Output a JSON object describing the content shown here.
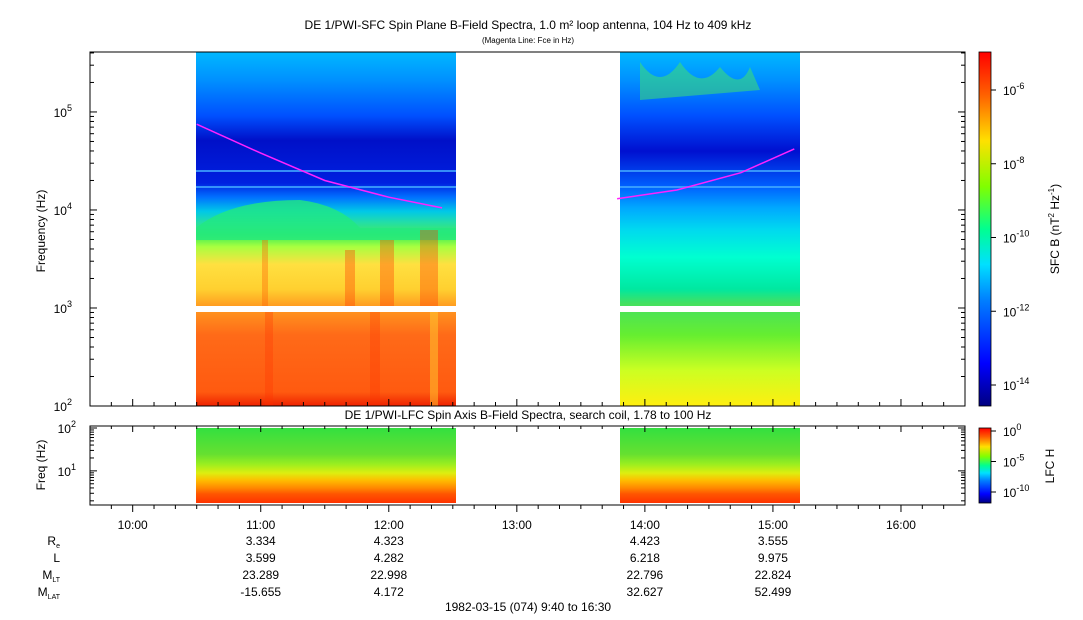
{
  "chart_data": [
    {
      "type": "heatmap",
      "title": "DE 1/PWI-SFC  Spin Plane B-Field Spectra, 1.0 m² loop antenna, 104 Hz to 409 kHz",
      "subtitle": "(Magenta Line: Fce in Hz)",
      "ylabel": "Frequency (Hz)",
      "yscale": "log",
      "ylim": [
        100,
        409000
      ],
      "yticks": [
        {
          "base": "10",
          "exp": "2"
        },
        {
          "base": "10",
          "exp": "3"
        },
        {
          "base": "10",
          "exp": "4"
        },
        {
          "base": "10",
          "exp": "5"
        }
      ],
      "colorbar": {
        "label_main": "SFC B (nT",
        "label_exp1": "2",
        "label_mid": " Hz",
        "label_exp2": "-1",
        "label_end": ")",
        "scale": "log",
        "ticks": [
          {
            "base": "10",
            "exp": "-6"
          },
          {
            "base": "10",
            "exp": "-8"
          },
          {
            "base": "10",
            "exp": "-10"
          },
          {
            "base": "10",
            "exp": "-12"
          },
          {
            "base": "10",
            "exp": "-14"
          }
        ]
      },
      "data_segments": [
        {
          "start": "10:30",
          "end": "12:30"
        },
        {
          "start": "13:47",
          "end": "15:11"
        }
      ],
      "fce_line": {
        "color": "#ff22ff",
        "segment1": [
          [
            "10:30",
            75000
          ],
          [
            "11:00",
            38000
          ],
          [
            "11:30",
            20000
          ],
          [
            "12:00",
            13500
          ],
          [
            "12:25",
            10500
          ]
        ],
        "segment2": [
          [
            "13:47",
            13000
          ],
          [
            "14:15",
            16000
          ],
          [
            "14:45",
            24000
          ],
          [
            "15:10",
            42000
          ]
        ]
      }
    },
    {
      "type": "heatmap",
      "title": "DE 1/PWI-LFC  Spin Axis B-Field Spectra, search coil, 1.78 to 100 Hz",
      "ylabel": "Freq (Hz)",
      "yscale": "log",
      "ylim": [
        1.78,
        100
      ],
      "yticks": [
        {
          "base": "10",
          "exp": "1"
        },
        {
          "base": "10",
          "exp": "2"
        }
      ],
      "colorbar": {
        "label": "LFC H",
        "scale": "log",
        "ticks": [
          {
            "base": "10",
            "exp": "0"
          },
          {
            "base": "10",
            "exp": "-5"
          },
          {
            "base": "10",
            "exp": "-10"
          }
        ]
      }
    }
  ],
  "time_axis": {
    "range": [
      "09:40",
      "16:30"
    ],
    "ticks": [
      "10:00",
      "11:00",
      "12:00",
      "13:00",
      "14:00",
      "15:00",
      "16:00"
    ]
  },
  "ephemeris": {
    "rows": [
      {
        "label": "R",
        "sub": "e",
        "values": [
          "3.334",
          "4.323",
          "",
          "4.423",
          "3.555"
        ]
      },
      {
        "label": "L",
        "sub": "",
        "values": [
          "3.599",
          "4.282",
          "",
          "6.218",
          "9.975"
        ]
      },
      {
        "label": "M",
        "sub": "LT",
        "values": [
          "23.289",
          "22.998",
          "",
          "22.796",
          "22.824"
        ]
      },
      {
        "label": "M",
        "sub": "LAT",
        "values": [
          "-15.655",
          "4.172",
          "",
          "32.627",
          "52.499"
        ]
      }
    ]
  },
  "footer": "1982-03-15 (074) 9:40 to 16:30"
}
